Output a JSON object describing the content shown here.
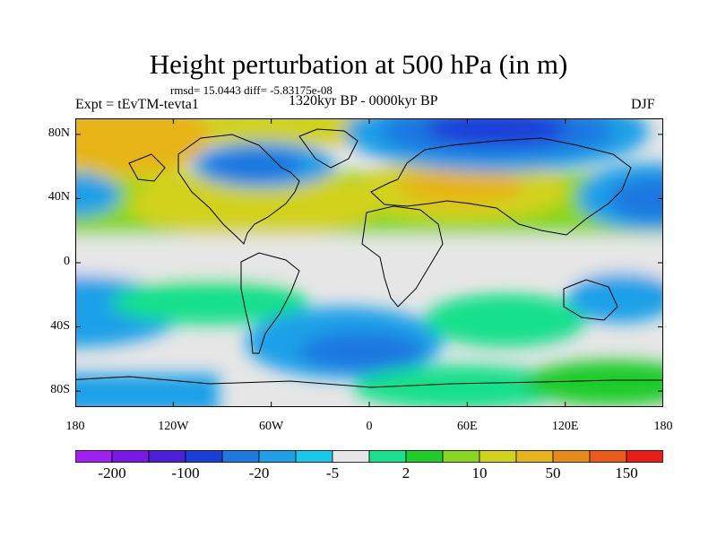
{
  "title": "Height perturbation at 500 hPa (in m)",
  "stats_line": "rmsd= 15.0443 diff= -5.83175e-08",
  "experiment_label": "Expt = tEvTM-tevta1",
  "period_label": "1320kyr BP - 0000kyr BP",
  "season_label": "DJF",
  "y_ticks": [
    {
      "label": "80N",
      "lat": 80
    },
    {
      "label": "40N",
      "lat": 40
    },
    {
      "label": "0",
      "lat": 0
    },
    {
      "label": "40S",
      "lat": -40
    },
    {
      "label": "80S",
      "lat": -80
    }
  ],
  "x_ticks": [
    {
      "label": "180",
      "lon": -180
    },
    {
      "label": "120W",
      "lon": -120
    },
    {
      "label": "60W",
      "lon": -60
    },
    {
      "label": "0",
      "lon": 0
    },
    {
      "label": "60E",
      "lon": 60
    },
    {
      "label": "120E",
      "lon": 120
    },
    {
      "label": "180",
      "lon": 180
    }
  ],
  "colorbar": {
    "colors": [
      "#a020f0",
      "#7a18e8",
      "#4a20d8",
      "#1a3ed8",
      "#1e78e0",
      "#1ea0e8",
      "#19c8ec",
      "#e6e6e6",
      "#19e08c",
      "#1ecc2a",
      "#8ad61e",
      "#d2d21a",
      "#e6b419",
      "#e88a19",
      "#ec5a19",
      "#e81e19"
    ],
    "labels": [
      {
        "text": "-200",
        "boundary": 1
      },
      {
        "text": "-100",
        "boundary": 3
      },
      {
        "text": "-20",
        "boundary": 5
      },
      {
        "text": "-5",
        "boundary": 7
      },
      {
        "text": "2",
        "boundary": 9
      },
      {
        "text": "10",
        "boundary": 11
      },
      {
        "text": "50",
        "boundary": 13
      },
      {
        "text": "150",
        "boundary": 15
      }
    ]
  }
}
